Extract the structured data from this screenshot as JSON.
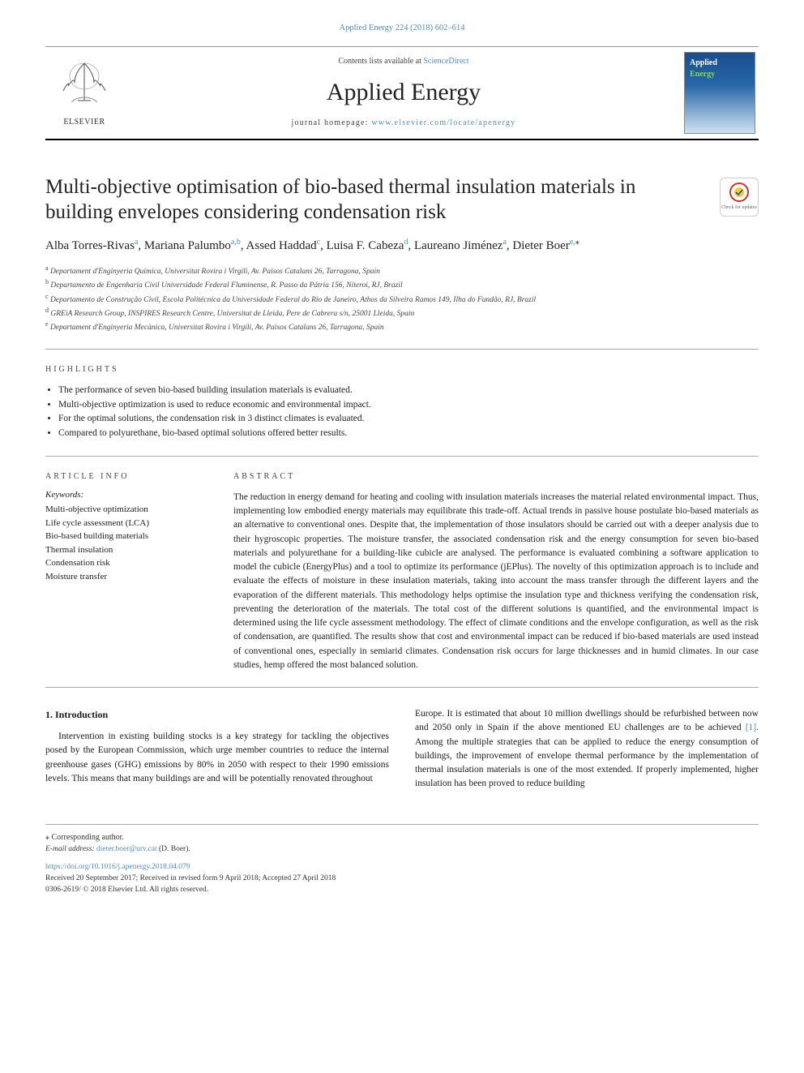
{
  "citation_line": "Applied Energy 224 (2018) 602–614",
  "header": {
    "contents_prefix": "Contents lists available at ",
    "contents_link": "ScienceDirect",
    "journal_name": "Applied Energy",
    "homepage_prefix": "journal homepage: ",
    "homepage_url": "www.elsevier.com/locate/apenergy",
    "publisher_word": "ELSEVIER",
    "cover_word1": "Applied",
    "cover_word2": "Energy"
  },
  "article": {
    "title": "Multi-objective optimisation of bio-based thermal insulation materials in building envelopes considering condensation risk",
    "updates_badge": "Check for updates",
    "authors_html": "Alba Torres-Rivas<sup>a</sup>, Mariana Palumbo<sup>a,b</sup>, Assed Haddad<sup>c</sup>, Luisa F. Cabeza<sup>d</sup>, Laureano Jiménez<sup>a</sup>, Dieter Boer<sup>e,</sup><sup class=\"ast\">⁎</sup>",
    "affiliations": [
      {
        "key": "a",
        "text": "Departament d'Enginyeria Química, Universitat Rovira i Virgili, Av. Paisos Catalans 26, Tarragona, Spain"
      },
      {
        "key": "b",
        "text": "Departamento de Engenharia Civil Universidade Federal Fluminense, R. Passo da Pátria 156, Niteroi, RJ, Brazil"
      },
      {
        "key": "c",
        "text": "Departamento de Construção Civil, Escola Politécnica da Universidade Federal do Rio de Janeiro, Athos da Silveira Ramos 149, Ilha do Fundão, RJ, Brazil"
      },
      {
        "key": "d",
        "text": "GREiA Research Group, INSPIRES Research Centre, Universitat de Lleida, Pere de Cabrera s/n, 25001 Lleida, Spain"
      },
      {
        "key": "e",
        "text": "Departament d'Enginyeria Mecànica, Universitat Rovira i Virgili, Av. Paisos Catalans 26, Tarragona, Spain"
      }
    ]
  },
  "highlights": {
    "label": "HIGHLIGHTS",
    "items": [
      "The performance of seven bio-based building insulation materials is evaluated.",
      "Multi-objective optimization is used to reduce economic and environmental impact.",
      "For the optimal solutions, the condensation risk in 3 distinct climates is evaluated.",
      "Compared to polyurethane, bio-based optimal solutions offered better results."
    ]
  },
  "article_info": {
    "label": "ARTICLE INFO",
    "keywords_head": "Keywords:",
    "keywords": [
      "Multi-objective optimization",
      "Life cycle assessment (LCA)",
      "Bio-based building materials",
      "Thermal insulation",
      "Condensation risk",
      "Moisture transfer"
    ]
  },
  "abstract": {
    "label": "ABSTRACT",
    "text": "The reduction in energy demand for heating and cooling with insulation materials increases the material related environmental impact. Thus, implementing low embodied energy materials may equilibrate this trade-off. Actual trends in passive house postulate bio-based materials as an alternative to conventional ones. Despite that, the implementation of those insulators should be carried out with a deeper analysis due to their hygroscopic properties. The moisture transfer, the associated condensation risk and the energy consumption for seven bio-based materials and polyurethane for a building-like cubicle are analysed. The performance is evaluated combining a software application to model the cubicle (EnergyPlus) and a tool to optimize its performance (jEPlus). The novelty of this optimization approach is to include and evaluate the effects of moisture in these insulation materials, taking into account the mass transfer through the different layers and the evaporation of the different materials. This methodology helps optimise the insulation type and thickness verifying the condensation risk, preventing the deterioration of the materials. The total cost of the different solutions is quantified, and the environmental impact is determined using the life cycle assessment methodology. The effect of climate conditions and the envelope configuration, as well as the risk of condensation, are quantified. The results show that cost and environmental impact can be reduced if bio-based materials are used instead of conventional ones, especially in semiarid climates. Condensation risk occurs for large thicknesses and in humid climates. In our case studies, hemp offered the most balanced solution."
  },
  "body": {
    "heading": "1. Introduction",
    "col1": "Intervention in existing building stocks is a key strategy for tackling the objectives posed by the European Commission, which urge member countries to reduce the internal greenhouse gases (GHG) emissions by 80% in 2050 with respect to their 1990 emissions levels. This means that many buildings are and will be potentially renovated throughout",
    "col2_a": "Europe. It is estimated that about 10 million dwellings should be refurbished between now and 2050 only in Spain if the above mentioned EU challenges are to be achieved ",
    "ref1": "[1]",
    "col2_b": ". Among the multiple strategies that can be applied to reduce the energy consumption of buildings, the improvement of envelope thermal performance by the implementation of thermal insulation materials is one of the most extended. If properly implemented, higher insulation has been proved to reduce building"
  },
  "footer": {
    "corresp": "⁎ Corresponding author.",
    "email_label": "E-mail address: ",
    "email": "dieter.boer@urv.cat",
    "email_person": " (D. Boer).",
    "doi": "https://doi.org/10.1016/j.apenergy.2018.04.079",
    "received": "Received 20 September 2017; Received in revised form 9 April 2018; Accepted 27 April 2018",
    "copyright": "0306-2619/ © 2018 Elsevier Ltd. All rights reserved."
  },
  "colors": {
    "link": "#5a8bb8",
    "rule": "#aaaaaa",
    "cover_grad_top": "#1b4e8c",
    "cover_grad_mid": "#2666a8",
    "cover_grad_bot": "#d0e2f2"
  }
}
